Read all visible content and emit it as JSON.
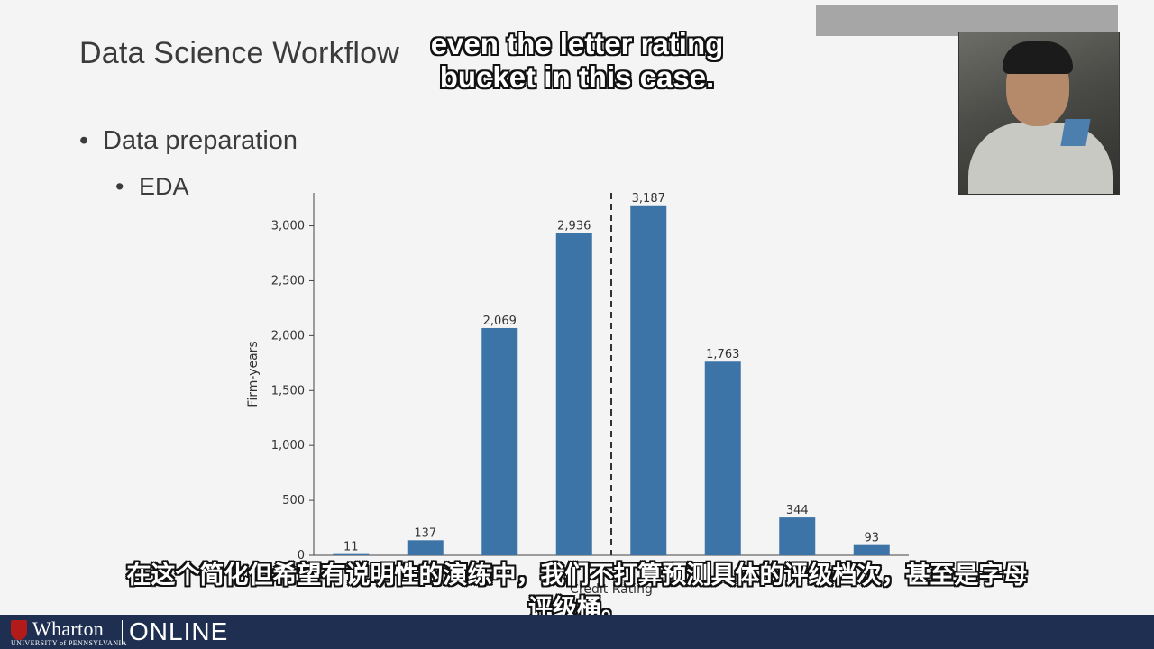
{
  "slide": {
    "title": "Data Science Workflow",
    "bullet_1": "Data preparation",
    "bullet_2": "EDA",
    "bullet_char": "•"
  },
  "captions": {
    "english": "even the letter rating bucket in this case.",
    "chinese": "在这个简化但希望有说明性的演练中，我们不打算预测具体的评级档次，甚至是字母评级桶。"
  },
  "footer": {
    "logo_text": "Wharton",
    "logo_subtext": "UNIVERSITY of PENNSYLVANIA",
    "online_text": "ONLINE",
    "bar_color": "#1e2f52"
  },
  "chart_data": {
    "type": "bar",
    "title": "",
    "xlabel": "Credit Rating",
    "ylabel": "Firm-years",
    "categories": [
      "",
      "",
      "",
      "",
      "",
      "",
      "",
      ""
    ],
    "values": [
      11,
      137,
      2069,
      2936,
      3187,
      1763,
      344,
      93
    ],
    "data_labels": [
      "11",
      "137",
      "2,069",
      "2,936",
      "3,187",
      "1,763",
      "344",
      "93"
    ],
    "yticks": [
      0,
      500,
      1000,
      1500,
      2000,
      2500,
      3000
    ],
    "ytick_labels": [
      "0",
      "500",
      "1,000",
      "1,500",
      "2,000",
      "2,500",
      "3,000"
    ],
    "ylim": [
      0,
      3300
    ],
    "bar_color": "#3d74a8",
    "divider": {
      "style": "dashed",
      "between_categories": [
        4,
        5
      ]
    },
    "grid": false,
    "legend": "none"
  }
}
